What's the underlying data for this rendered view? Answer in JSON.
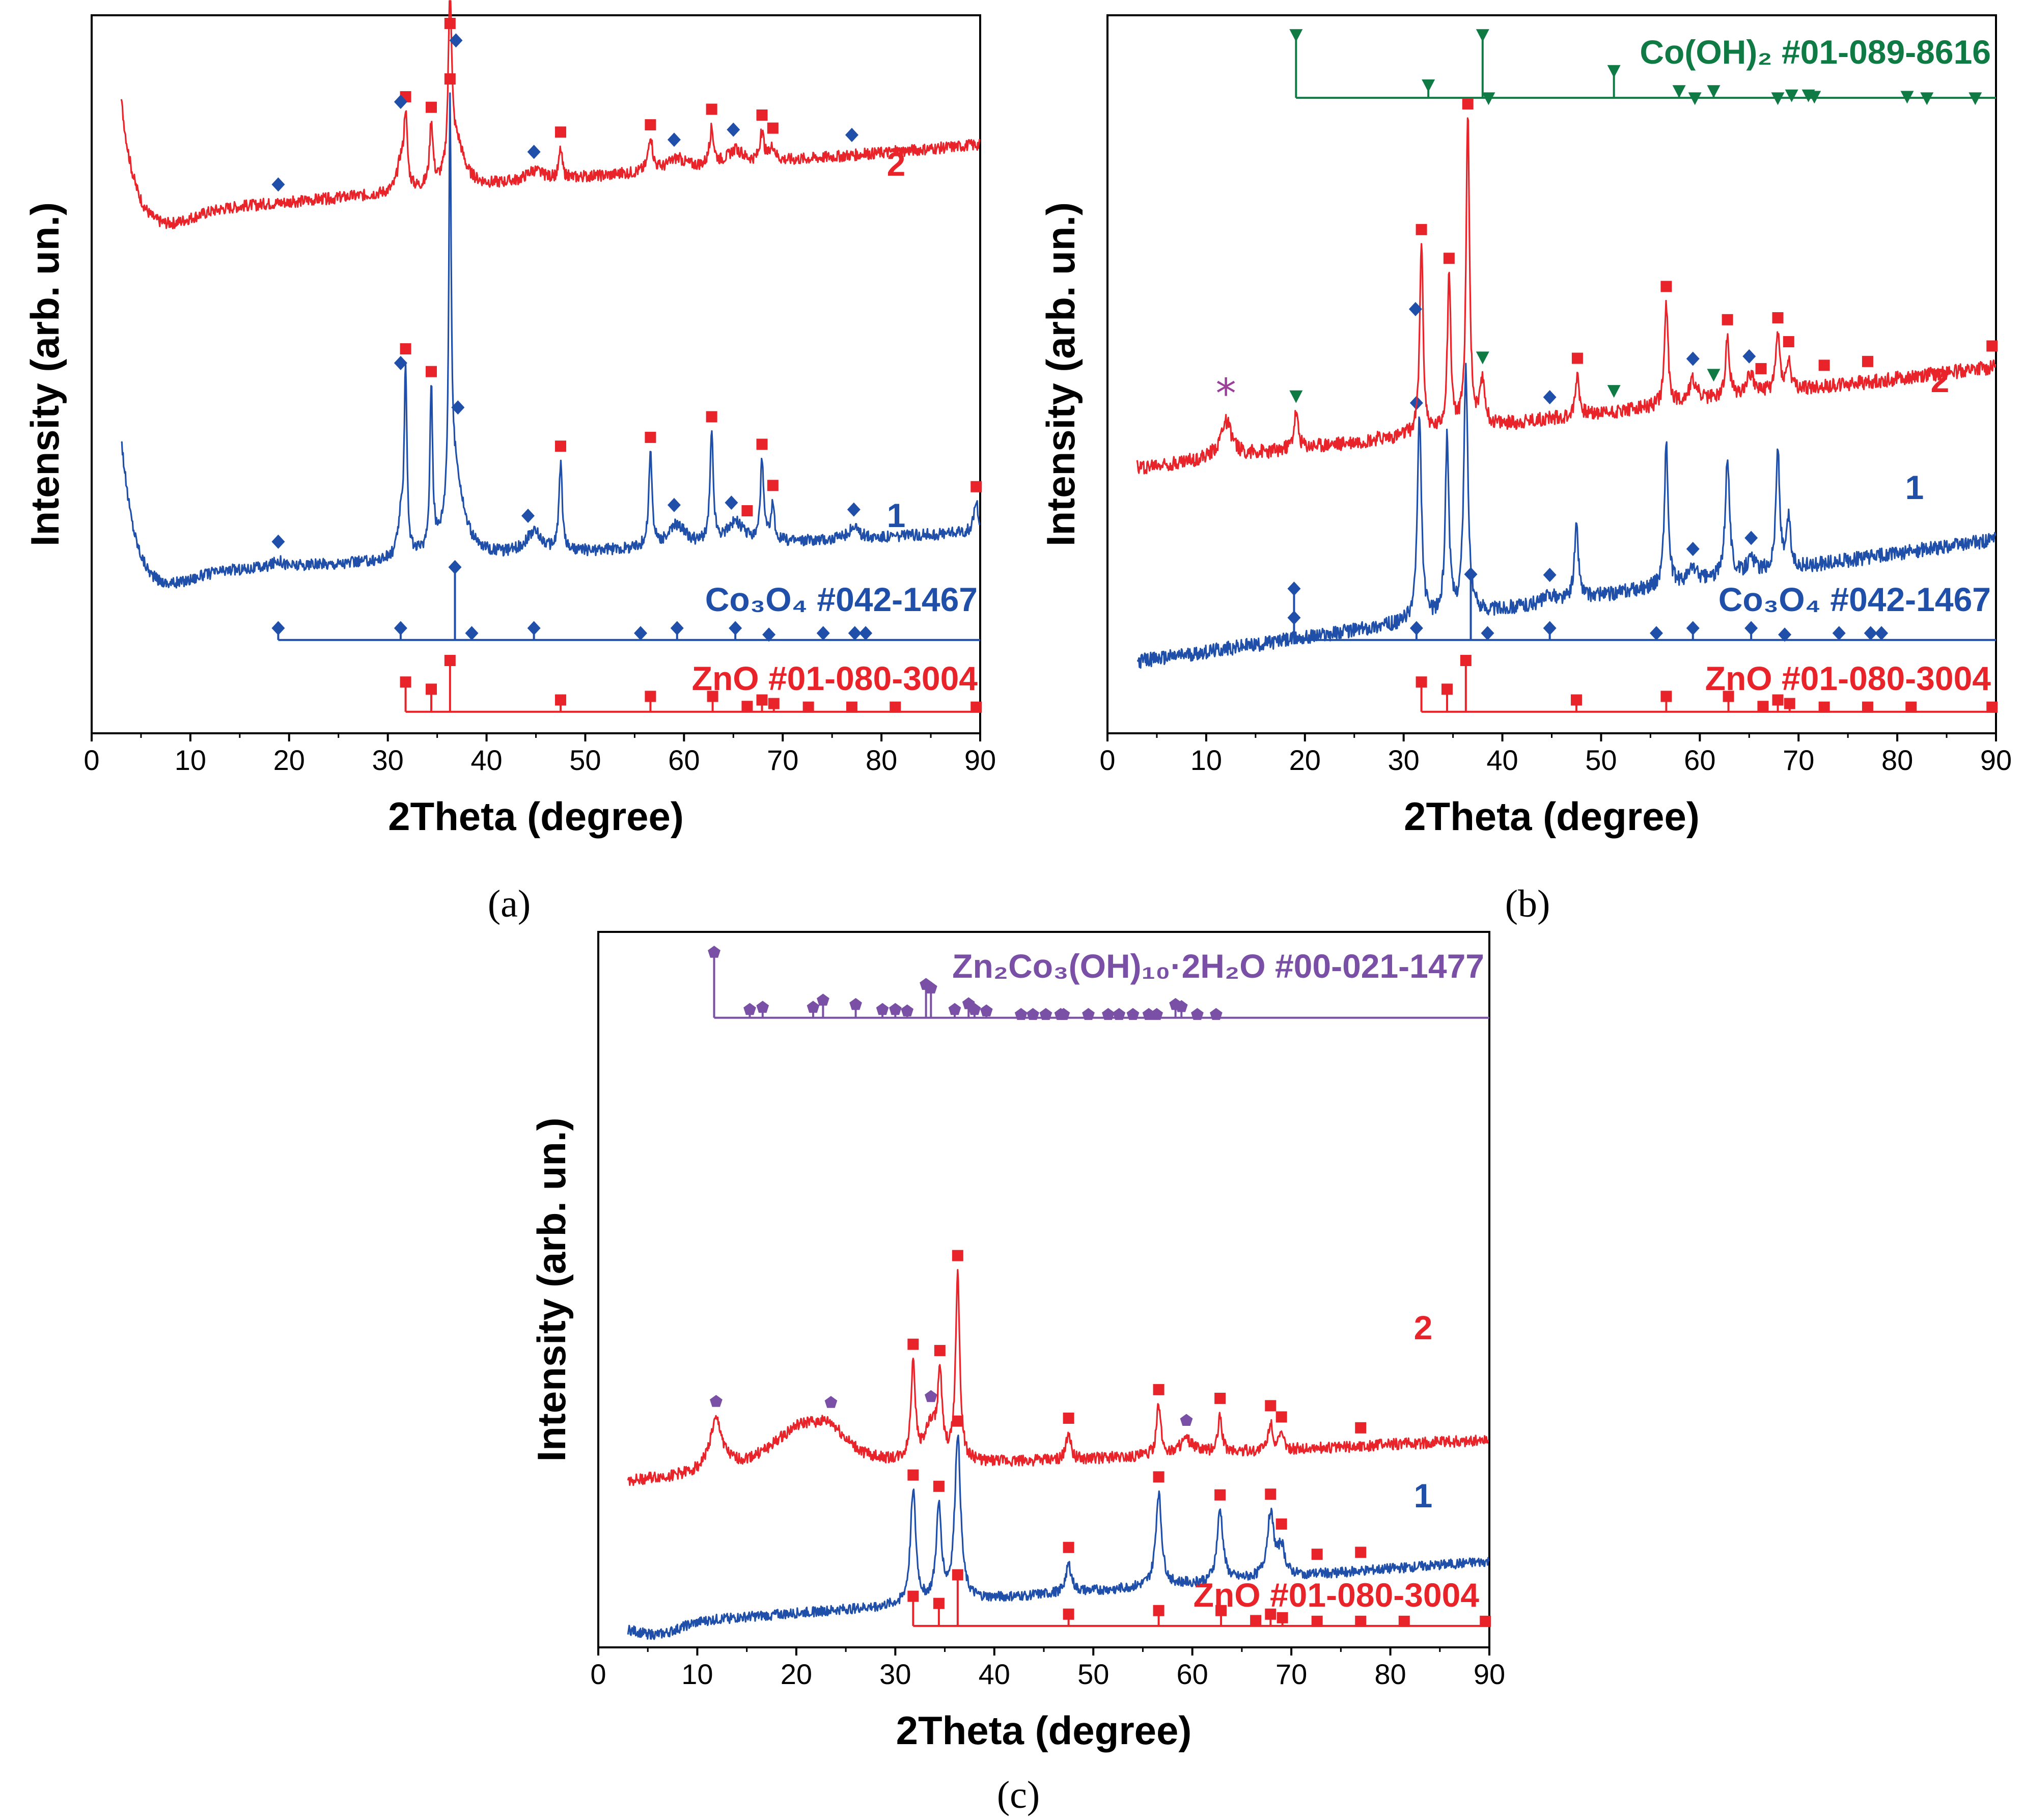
{
  "colors": {
    "blue": "#1f4fa8",
    "red": "#e8242a",
    "green": "#0f7a44",
    "purple": "#7a4fa6",
    "star": "#9b3f9a"
  },
  "chart_data": [
    {
      "id": "a",
      "type": "line",
      "panel_label": "(a)",
      "xlabel": "2Theta (degree)",
      "ylabel": "Intensity (arb. un.)",
      "xlim": [
        0,
        90
      ],
      "xticks": [
        0,
        10,
        20,
        30,
        40,
        50,
        60,
        70,
        80,
        90
      ],
      "series": [
        {
          "name": "1",
          "label": "1",
          "color": "blue",
          "baseline": 0.22,
          "slope": 0.06,
          "start_hump": 0.2,
          "noise": 0.008,
          "peaks": [
            [
              18.9,
              0.01,
              0.6
            ],
            [
              31.3,
              0.05,
              0.35
            ],
            [
              31.8,
              0.26,
              0.16
            ],
            [
              34.4,
              0.23,
              0.16
            ],
            [
              36.3,
              0.55,
              0.14
            ],
            [
              36.8,
              0.12,
              1.0
            ],
            [
              44.8,
              0.03,
              1.0
            ],
            [
              47.5,
              0.12,
              0.2
            ],
            [
              56.6,
              0.13,
              0.2
            ],
            [
              59.3,
              0.03,
              1.0
            ],
            [
              62.8,
              0.15,
              0.2
            ],
            [
              65.2,
              0.03,
              1.0
            ],
            [
              67.9,
              0.11,
              0.2
            ],
            [
              69.0,
              0.05,
              0.2
            ],
            [
              77.2,
              0.015,
              0.6
            ],
            [
              89.6,
              0.04,
              0.3
            ]
          ],
          "markers_zno": [
            31.8,
            34.4,
            36.3,
            47.5,
            56.6,
            62.8,
            66.4,
            67.9,
            69.0,
            89.6
          ],
          "markers_co3o4": [
            18.9,
            31.3,
            37.1,
            44.2,
            59.0,
            64.8,
            77.2
          ]
        },
        {
          "name": "2",
          "label": "2",
          "color": "red",
          "baseline": 0.72,
          "slope": 0.1,
          "start_hump": 0.17,
          "noise": 0.008,
          "peaks": [
            [
              31.3,
              0.04,
              0.4
            ],
            [
              31.8,
              0.1,
              0.2
            ],
            [
              34.4,
              0.09,
              0.2
            ],
            [
              36.3,
              0.25,
              0.2
            ],
            [
              37.0,
              0.06,
              0.9
            ],
            [
              44.8,
              0.015,
              1.0
            ],
            [
              47.5,
              0.04,
              0.2
            ],
            [
              56.6,
              0.05,
              0.25
            ],
            [
              59.3,
              0.015,
              1.0
            ],
            [
              62.8,
              0.05,
              0.25
            ],
            [
              65.2,
              0.02,
              1.0
            ],
            [
              67.9,
              0.04,
              0.25
            ],
            [
              69.0,
              0.02,
              0.3
            ]
          ],
          "markers_zno": [
            31.8,
            34.4,
            36.3,
            47.5,
            56.6,
            62.8,
            67.9,
            69.0
          ],
          "markers_co3o4": [
            18.9,
            31.3,
            36.9,
            44.8,
            59.0,
            65.0,
            77.0
          ]
        }
      ],
      "references": [
        {
          "name": "Co3O4",
          "color": "blue",
          "marker": "diamond",
          "base": 0.13,
          "label_text": "Co₃O₄ #042-1467",
          "positions": [
            18.9,
            31.3,
            36.8,
            38.5,
            44.8,
            55.6,
            59.3,
            65.2,
            68.6,
            74.1,
            77.3,
            78.4
          ],
          "heights": [
            0.015,
            0.015,
            0.1,
            0.008,
            0.015,
            0.008,
            0.015,
            0.015,
            0.006,
            0.008,
            0.008,
            0.008
          ]
        },
        {
          "name": "ZnO",
          "color": "red",
          "marker": "square",
          "base": 0.03,
          "label_text": "ZnO #01-080-3004",
          "positions": [
            31.8,
            34.4,
            36.3,
            47.5,
            56.6,
            62.9,
            66.4,
            67.9,
            69.1,
            72.6,
            77.0,
            81.4,
            89.6
          ],
          "heights": [
            0.04,
            0.03,
            0.07,
            0.015,
            0.02,
            0.02,
            0.006,
            0.015,
            0.01,
            0.005,
            0.005,
            0.005,
            0.005
          ]
        }
      ]
    },
    {
      "id": "b",
      "type": "line",
      "panel_label": "(b)",
      "xlabel": "2Theta (degree)",
      "ylabel": "Intensity (arb. un.)",
      "xlim": [
        0,
        90
      ],
      "xticks": [
        0,
        10,
        20,
        30,
        40,
        50,
        60,
        70,
        80,
        90
      ],
      "series": [
        {
          "name": "1",
          "label": "1",
          "color": "blue",
          "baseline": 0.1,
          "slope": 0.17,
          "start_hump": 0.0,
          "noise": 0.01,
          "peaks": [
            [
              31.6,
              0.28,
              0.25
            ],
            [
              34.4,
              0.25,
              0.22
            ],
            [
              36.3,
              0.34,
              0.25
            ],
            [
              47.5,
              0.1,
              0.25
            ],
            [
              56.6,
              0.2,
              0.22
            ],
            [
              62.8,
              0.17,
              0.25
            ],
            [
              67.9,
              0.17,
              0.22
            ],
            [
              69.0,
              0.07,
              0.22
            ],
            [
              59.3,
              0.02,
              0.5
            ],
            [
              65.2,
              0.02,
              0.5
            ],
            [
              44.8,
              0.01,
              0.6
            ]
          ],
          "markers_co3o4": [
            18.9,
            31.3,
            44.8,
            59.3,
            65.2
          ]
        },
        {
          "name": "2",
          "label": "2",
          "color": "red",
          "baseline": 0.37,
          "slope": 0.14,
          "start_hump": 0.0,
          "noise": 0.01,
          "peaks": [
            [
              12.0,
              0.05,
              0.7
            ],
            [
              19.1,
              0.05,
              0.25
            ],
            [
              31.8,
              0.27,
              0.2
            ],
            [
              34.6,
              0.22,
              0.2
            ],
            [
              36.5,
              0.44,
              0.2
            ],
            [
              38.0,
              0.06,
              0.3
            ],
            [
              47.6,
              0.06,
              0.22
            ],
            [
              56.6,
              0.14,
              0.22
            ],
            [
              59.3,
              0.03,
              0.5
            ],
            [
              62.8,
              0.08,
              0.25
            ],
            [
              65.1,
              0.03,
              0.5
            ],
            [
              67.9,
              0.08,
              0.25
            ],
            [
              69.0,
              0.04,
              0.25
            ]
          ],
          "markers_zno": [
            31.8,
            34.6,
            36.5,
            47.6,
            56.6,
            62.8,
            66.2,
            67.9,
            69.0,
            72.6,
            77.0,
            89.6
          ],
          "markers_co3o4": [
            31.2,
            44.8,
            59.3,
            65.0
          ],
          "markers_cooh": [
            19.1,
            38.0,
            51.3,
            61.4
          ],
          "star_at": 12.0
        }
      ],
      "references": [
        {
          "name": "Co(OH)2",
          "color": "green",
          "marker": "triangle",
          "base": 0.885,
          "label_text": "Co(OH)₂ #01-089-8616",
          "positions": [
            19.1,
            32.5,
            38.0,
            38.6,
            51.3,
            57.9,
            59.5,
            61.4,
            67.9,
            69.3,
            71.0,
            71.6,
            81.0,
            83.0,
            87.9
          ],
          "heights": [
            0.09,
            0.02,
            0.09,
            0.002,
            0.04,
            0.012,
            0.002,
            0.012,
            0.002,
            0.006,
            0.006,
            0.004,
            0.004,
            0.002,
            0.002
          ]
        },
        {
          "name": "Co3O4",
          "color": "blue",
          "marker": "diamond",
          "base": 0.13,
          "label_text": "Co₃O₄ #042-1467",
          "positions": [
            18.9,
            31.3,
            36.8,
            38.5,
            44.8,
            55.6,
            59.3,
            65.2,
            68.6,
            74.1,
            77.3,
            78.4
          ],
          "heights": [
            0.07,
            0.015,
            0.09,
            0.008,
            0.015,
            0.008,
            0.015,
            0.015,
            0.006,
            0.008,
            0.008,
            0.008
          ]
        },
        {
          "name": "ZnO",
          "color": "red",
          "marker": "square",
          "base": 0.03,
          "label_text": "ZnO #01-080-3004",
          "positions": [
            31.8,
            34.4,
            36.3,
            47.5,
            56.6,
            62.9,
            66.4,
            67.9,
            69.1,
            72.6,
            77.0,
            81.4,
            89.6
          ],
          "heights": [
            0.04,
            0.03,
            0.07,
            0.015,
            0.02,
            0.02,
            0.006,
            0.015,
            0.01,
            0.005,
            0.005,
            0.005,
            0.005
          ]
        }
      ]
    },
    {
      "id": "c",
      "type": "line",
      "panel_label": "(c)",
      "xlabel": "2Theta (degree)",
      "ylabel": "Intensity (arb. un.)",
      "xlim": [
        0,
        90
      ],
      "xticks": [
        0,
        10,
        20,
        30,
        40,
        50,
        60,
        70,
        80,
        90
      ],
      "series": [
        {
          "name": "1",
          "label": "1",
          "color": "blue",
          "baseline": 0.03,
          "slope": 0.09,
          "start_hump": 0.0,
          "noise": 0.007,
          "peaks": [
            [
              31.8,
              0.16,
              0.32
            ],
            [
              34.4,
              0.13,
              0.32
            ],
            [
              36.3,
              0.23,
              0.35
            ],
            [
              47.5,
              0.04,
              0.35
            ],
            [
              56.6,
              0.13,
              0.35
            ],
            [
              62.8,
              0.1,
              0.35
            ],
            [
              67.9,
              0.09,
              0.4
            ],
            [
              69.0,
              0.04,
              0.4
            ]
          ],
          "markers_zno": [
            31.8,
            34.4,
            36.3,
            47.5,
            56.6,
            62.8,
            67.9,
            69.0,
            72.6,
            77.0
          ]
        },
        {
          "name": "2",
          "label": "2",
          "color": "red",
          "baseline": 0.23,
          "slope": 0.06,
          "start_hump": 0.0,
          "noise": 0.008,
          "peaks": [
            [
              11.9,
              0.07,
              0.8
            ],
            [
              20.5,
              0.06,
              4.0
            ],
            [
              23.5,
              0.03,
              2.0
            ],
            [
              31.8,
              0.14,
              0.25
            ],
            [
              33.6,
              0.05,
              0.8
            ],
            [
              34.5,
              0.11,
              0.25
            ],
            [
              36.3,
              0.26,
              0.25
            ],
            [
              47.5,
              0.04,
              0.25
            ],
            [
              56.6,
              0.07,
              0.25
            ],
            [
              59.4,
              0.02,
              0.8
            ],
            [
              62.8,
              0.05,
              0.25
            ],
            [
              67.9,
              0.04,
              0.25
            ],
            [
              69.0,
              0.02,
              0.25
            ]
          ],
          "markers_zno": [
            31.8,
            34.5,
            36.3,
            47.5,
            56.6,
            62.8,
            67.9,
            69.0,
            77.0
          ],
          "markers_znco": [
            11.9,
            23.5,
            33.6,
            59.4
          ]
        }
      ],
      "references": [
        {
          "name": "Zn2Co3(OH)10·2H2O",
          "color": "purple",
          "marker": "pentagon",
          "base": 0.88,
          "label_text": "Zn₂Co₃(OH)₁₀·2H₂O #00-021-1477",
          "positions": [
            11.7,
            15.3,
            16.6,
            21.7,
            22.7,
            26.0,
            28.7,
            30.0,
            31.2,
            33.1,
            33.6,
            36.0,
            37.4,
            38.0,
            39.2,
            42.7,
            43.9,
            45.2,
            46.7,
            47.0,
            49.5,
            51.5,
            52.6,
            54.0,
            55.6,
            56.4,
            58.3,
            58.9,
            60.5,
            62.4
          ],
          "heights": [
            0.09,
            0.01,
            0.013,
            0.013,
            0.023,
            0.017,
            0.01,
            0.01,
            0.008,
            0.045,
            0.04,
            0.01,
            0.018,
            0.01,
            0.008,
            0.003,
            0.003,
            0.003,
            0.003,
            0.003,
            0.003,
            0.003,
            0.003,
            0.003,
            0.003,
            0.003,
            0.017,
            0.014,
            0.003,
            0.003
          ]
        },
        {
          "name": "ZnO",
          "color": "red",
          "marker": "square",
          "base": 0.03,
          "label_text": "ZnO #01-080-3004",
          "positions": [
            31.8,
            34.4,
            36.3,
            47.5,
            56.6,
            62.9,
            66.4,
            67.9,
            69.1,
            72.6,
            77.0,
            81.4,
            89.6
          ],
          "heights": [
            0.04,
            0.03,
            0.07,
            0.015,
            0.02,
            0.02,
            0.006,
            0.015,
            0.01,
            0.005,
            0.005,
            0.005,
            0.005
          ]
        }
      ]
    }
  ]
}
